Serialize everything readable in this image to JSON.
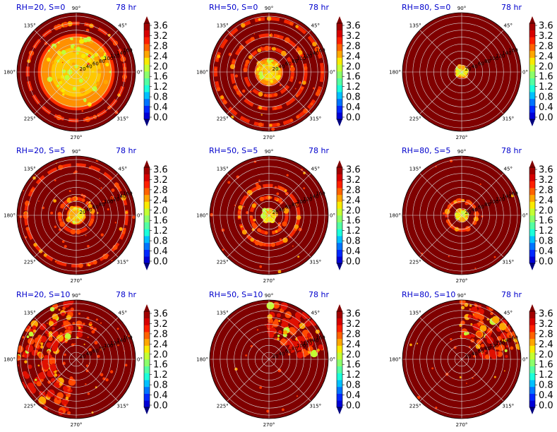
{
  "chart_data": {
    "type": "heatmap",
    "projection": "polar",
    "layout": {
      "rows": 3,
      "cols": 3
    },
    "angle_labels": [
      "90°",
      "45°",
      "0°",
      "315°",
      "270°",
      "225°",
      "180°",
      "135°"
    ],
    "radial_ticks": [
      20,
      40,
      60,
      80,
      100,
      120,
      140,
      160
    ],
    "colorbar": {
      "ticks": [
        "3.6",
        "3.2",
        "2.8",
        "2.4",
        "2.0",
        "1.6",
        "1.2",
        "0.8",
        "0.4",
        "0.0"
      ],
      "range": [
        0.0,
        3.6
      ],
      "extend": "both",
      "colormap": "jet",
      "colors": [
        "#00007f",
        "#0000d6",
        "#0028ff",
        "#0074ff",
        "#00c0ff",
        "#1bffdb",
        "#53ffa3",
        "#8bff6b",
        "#c3ff33",
        "#f9ea00",
        "#ffa600",
        "#ff6200",
        "#ff1f00",
        "#d60000",
        "#a20000",
        "#800000"
      ]
    },
    "panels": [
      {
        "label": "RH=20, S=0",
        "time": "78 hr",
        "core_extent": 0.6,
        "annular_rings": [
          0.82
        ],
        "scattered": 0.05,
        "side": ""
      },
      {
        "label": "RH=50, S=0",
        "time": "78 hr",
        "core_extent": 0.22,
        "annular_rings": [
          0.4,
          0.62,
          0.9
        ],
        "scattered": 0.08,
        "side": ""
      },
      {
        "label": "RH=80, S=0",
        "time": "78 hr",
        "core_extent": 0.1,
        "annular_rings": [],
        "scattered": 0.0,
        "side": ""
      },
      {
        "label": "RH=20, S=5",
        "time": "78 hr",
        "core_extent": 0.15,
        "annular_rings": [
          0.28,
          0.85
        ],
        "scattered": 0.2,
        "side": ""
      },
      {
        "label": "RH=50, S=5",
        "time": "78 hr",
        "core_extent": 0.12,
        "annular_rings": [
          0.3,
          0.5
        ],
        "scattered": 0.15,
        "side": ""
      },
      {
        "label": "RH=80, S=5",
        "time": "78 hr",
        "core_extent": 0.1,
        "annular_rings": [
          0.25
        ],
        "scattered": 0.05,
        "side": ""
      },
      {
        "label": "RH=20, S=10",
        "time": "78 hr",
        "core_extent": 0.0,
        "annular_rings": [],
        "scattered": 0.3,
        "side": "left"
      },
      {
        "label": "RH=50, S=10",
        "time": "78 hr",
        "core_extent": 0.0,
        "annular_rings": [],
        "scattered": 0.05,
        "side": "upper-right"
      },
      {
        "label": "RH=80, S=10",
        "time": "78 hr",
        "core_extent": 0.0,
        "annular_rings": [],
        "scattered": 0.1,
        "side": "upper-right"
      }
    ]
  }
}
